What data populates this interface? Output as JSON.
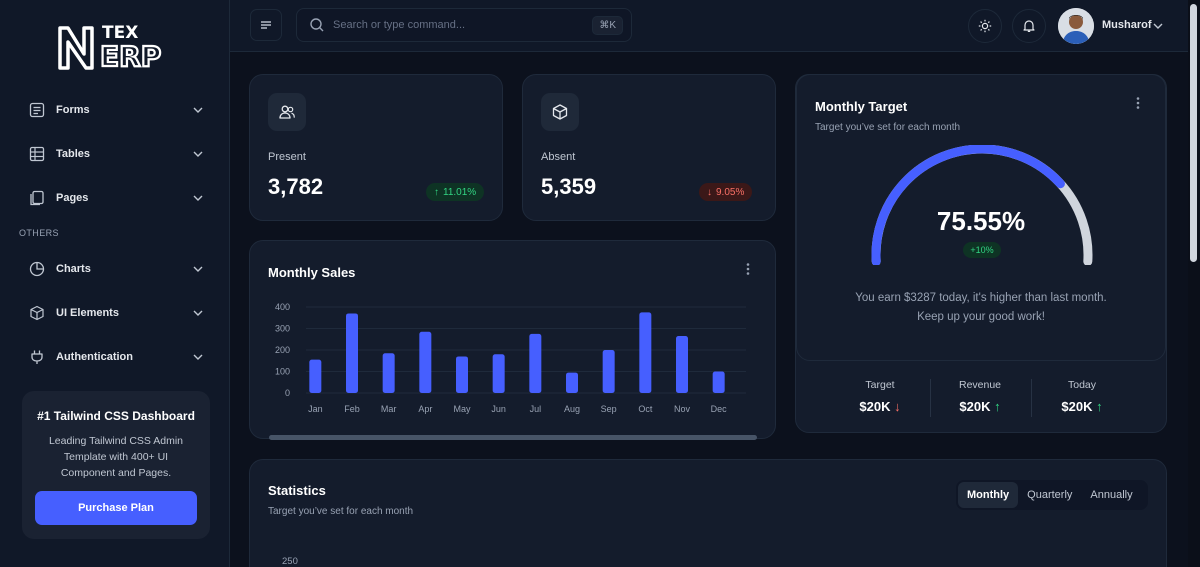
{
  "brand": {
    "logo_text_top": "TEX",
    "logo_text_bottom": "ERP"
  },
  "sidebar": {
    "items": [
      {
        "label": "Forms",
        "icon": "form-icon"
      },
      {
        "label": "Tables",
        "icon": "table-icon"
      },
      {
        "label": "Pages",
        "icon": "pages-icon"
      },
      {
        "label": "Charts",
        "icon": "pie-chart-icon"
      },
      {
        "label": "UI Elements",
        "icon": "cube-icon"
      },
      {
        "label": "Authentication",
        "icon": "plug-icon"
      }
    ],
    "section_others": "OTHERS",
    "promo": {
      "title": "#1 Tailwind CSS Dashboard",
      "text": "Leading Tailwind CSS Admin Template with 400+ UI Component and Pages.",
      "button": "Purchase Plan"
    }
  },
  "header": {
    "search_placeholder": "Search or type command...",
    "shortcut": "⌘K",
    "user_name": "Musharof"
  },
  "metrics": {
    "present": {
      "label": "Present",
      "value": "3,782",
      "change": "11.01%"
    },
    "absent": {
      "label": "Absent",
      "value": "5,359",
      "change": "9.05%"
    }
  },
  "sales": {
    "title": "Monthly Sales",
    "chart_data": {
      "type": "bar",
      "categories": [
        "Jan",
        "Feb",
        "Mar",
        "Apr",
        "May",
        "Jun",
        "Jul",
        "Aug",
        "Sep",
        "Oct",
        "Nov",
        "Dec"
      ],
      "values": [
        155,
        370,
        185,
        285,
        170,
        180,
        275,
        95,
        200,
        375,
        265,
        100
      ],
      "yticks": [
        0,
        100,
        200,
        300,
        400
      ],
      "ylim": [
        0,
        400
      ],
      "color": "#465fff"
    }
  },
  "target": {
    "title": "Monthly Target",
    "subtitle": "Target you’ve set for each month",
    "percent": "75.55%",
    "percent_value": 75.55,
    "badge": "+10%",
    "message_line1": "You earn $3287 today, it's higher than last month.",
    "message_line2": "Keep up your good work!",
    "stats": [
      {
        "label": "Target",
        "value": "$20K",
        "trend": "down"
      },
      {
        "label": "Revenue",
        "value": "$20K",
        "trend": "up"
      },
      {
        "label": "Today",
        "value": "$20K",
        "trend": "up"
      }
    ]
  },
  "statistics": {
    "title": "Statistics",
    "subtitle": "Target you’ve set for each month",
    "tabs": [
      "Monthly",
      "Quarterly",
      "Annually"
    ],
    "active_tab": "Monthly",
    "y_tick": "250"
  },
  "colors": {
    "accent": "#465fff",
    "success": "#32d583",
    "danger": "#f97066"
  }
}
